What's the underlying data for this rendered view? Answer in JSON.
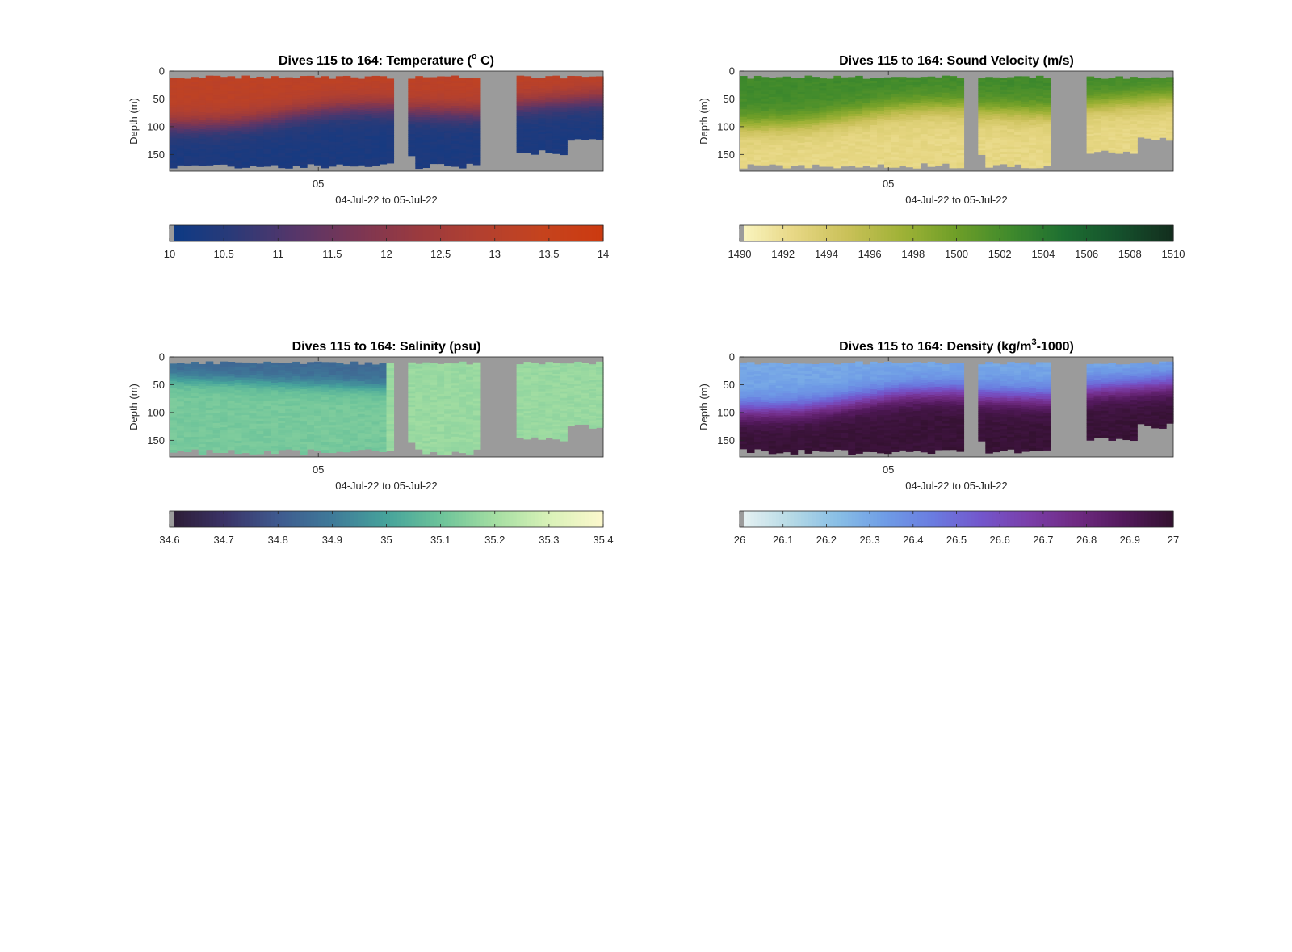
{
  "figure": {
    "background": "#ffffff",
    "nodata_color": "#9b9b9b"
  },
  "chart_data": [
    {
      "type": "heatmap",
      "title": "Dives 115 to 164: Temperature (",
      "title_sup": "o",
      "title_end": " C)",
      "xlabel": "04-Jul-22 to 05-Jul-22",
      "ylabel": "Depth (m)",
      "x_tick_labels": [
        "05"
      ],
      "y_tick_labels": [
        "0",
        "50",
        "100",
        "150"
      ],
      "ylim": [
        0,
        180
      ],
      "y_reversed": true,
      "colorbar": {
        "range": [
          10,
          14
        ],
        "tick_labels": [
          "10",
          "10.5",
          "11",
          "11.5",
          "12",
          "12.5",
          "13",
          "13.5",
          "14"
        ],
        "colors": [
          "#0b3a86",
          "#2a3a78",
          "#55366a",
          "#7a3655",
          "#9a3a3f",
          "#b24030",
          "#c5431e",
          "#cc3a10"
        ]
      },
      "surface_layer": {
        "value": 13.2,
        "description_level": "warm"
      },
      "deep_layer": {
        "value": 10.3
      },
      "gaps": [
        [
          0.522,
          0.542
        ],
        [
          0.72,
          0.8
        ]
      ],
      "pattern": "thermocline",
      "seed": 11
    },
    {
      "type": "heatmap",
      "title": "Dives 115 to 164: Sound Velocity (m/s)",
      "title_sup": "",
      "title_end": "",
      "xlabel": "04-Jul-22 to 05-Jul-22",
      "ylabel": "Depth (m)",
      "x_tick_labels": [
        "05"
      ],
      "y_tick_labels": [
        "0",
        "50",
        "100",
        "150"
      ],
      "ylim": [
        0,
        180
      ],
      "y_reversed": true,
      "colorbar": {
        "range": [
          1490,
          1510
        ],
        "tick_labels": [
          "1490",
          "1492",
          "1494",
          "1496",
          "1498",
          "1500",
          "1502",
          "1504",
          "1506",
          "1508",
          "1510"
        ],
        "colors": [
          "#fbf6c4",
          "#e7d784",
          "#c9c058",
          "#9fb236",
          "#6e9e28",
          "#3f8a2c",
          "#1d6e31",
          "#15512c",
          "#132d1e"
        ]
      },
      "surface_layer": {
        "value": 1502.5
      },
      "deep_layer": {
        "value": 1492.5
      },
      "gaps": [
        [
          0.522,
          0.542
        ],
        [
          0.72,
          0.8
        ]
      ],
      "pattern": "thermocline",
      "seed": 23
    },
    {
      "type": "heatmap",
      "title": "Dives 115 to 164: Salinity (psu)",
      "title_sup": "",
      "title_end": "",
      "xlabel": "04-Jul-22 to 05-Jul-22",
      "ylabel": "Depth (m)",
      "x_tick_labels": [
        "05"
      ],
      "y_tick_labels": [
        "0",
        "50",
        "100",
        "150"
      ],
      "ylim": [
        0,
        180
      ],
      "y_reversed": true,
      "colorbar": {
        "range": [
          34.6,
          35.4
        ],
        "tick_labels": [
          "34.6",
          "34.7",
          "34.8",
          "34.9",
          "35",
          "35.1",
          "35.2",
          "35.3",
          "35.4"
        ],
        "colors": [
          "#2b1b32",
          "#3a3266",
          "#3f5a8f",
          "#3f7a99",
          "#46a39b",
          "#6cc39a",
          "#a4dea2",
          "#d9f2b8",
          "#fcf8cd"
        ]
      },
      "surface_layer": {
        "value": 34.85
      },
      "deep_layer": {
        "value": 35.12
      },
      "gaps": [
        [
          0.522,
          0.542
        ],
        [
          0.72,
          0.8
        ]
      ],
      "pattern": "halocline",
      "seed": 37
    },
    {
      "type": "heatmap",
      "title": "Dives 115 to 164: Density (kg/m",
      "title_sup": "3",
      "title_end": "-1000)",
      "xlabel": "04-Jul-22 to 05-Jul-22",
      "ylabel": "Depth (m)",
      "x_tick_labels": [
        "05"
      ],
      "y_tick_labels": [
        "0",
        "50",
        "100",
        "150"
      ],
      "ylim": [
        0,
        180
      ],
      "y_reversed": true,
      "colorbar": {
        "range": [
          26,
          27
        ],
        "tick_labels": [
          "26",
          "26.1",
          "26.2",
          "26.3",
          "26.4",
          "26.5",
          "26.6",
          "26.7",
          "26.8",
          "26.9",
          "27"
        ],
        "colors": [
          "#e9f3f4",
          "#b9dbe6",
          "#8ac0e6",
          "#6f9de6",
          "#6a7ce0",
          "#7357cc",
          "#7a3ea9",
          "#6f2a82",
          "#52195b",
          "#33112f"
        ]
      },
      "surface_layer": {
        "value": 26.3
      },
      "deep_layer": {
        "value": 26.98
      },
      "gaps": [
        [
          0.522,
          0.542
        ],
        [
          0.72,
          0.8
        ]
      ],
      "pattern": "thermocline",
      "seed": 53
    }
  ]
}
